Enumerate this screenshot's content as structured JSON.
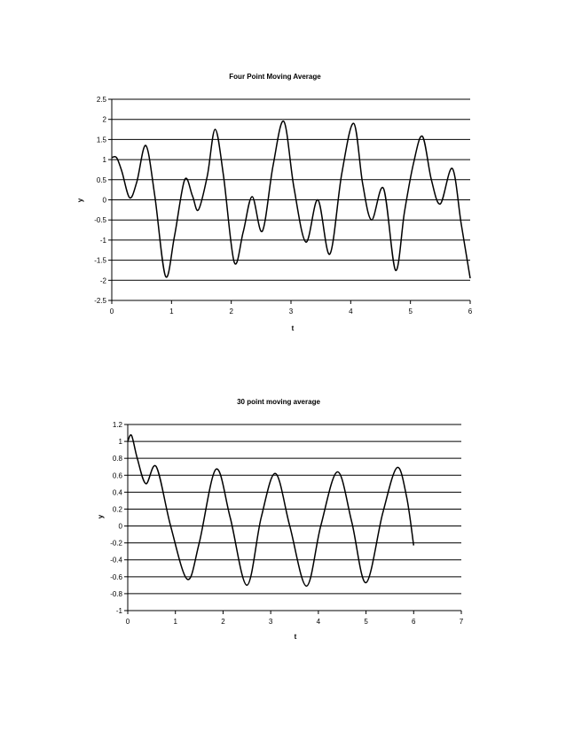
{
  "chart_data": [
    {
      "type": "line",
      "title": "Four Point Moving Average",
      "xlabel": "t",
      "ylabel": "y",
      "xlim": [
        0,
        6
      ],
      "ylim": [
        -2.5,
        2.5
      ],
      "x_ticks": [
        0,
        1,
        2,
        3,
        4,
        5,
        6
      ],
      "y_ticks": [
        2.5,
        2,
        1.5,
        1,
        0.5,
        0,
        -0.5,
        -1,
        -1.5,
        -2,
        -2.5
      ],
      "grid": "horizontal",
      "x": [
        0,
        0.08,
        0.17,
        0.3,
        0.42,
        0.57,
        0.72,
        0.9,
        1.05,
        1.22,
        1.35,
        1.45,
        1.6,
        1.73,
        1.87,
        2.05,
        2.2,
        2.35,
        2.52,
        2.7,
        2.88,
        3.05,
        3.25,
        3.45,
        3.65,
        3.85,
        4.05,
        4.2,
        4.35,
        4.55,
        4.75,
        4.9,
        5.05,
        5.2,
        5.35,
        5.5,
        5.7,
        5.85,
        6.0
      ],
      "y": [
        1.05,
        1.05,
        0.7,
        0.05,
        0.45,
        1.35,
        0.1,
        -1.9,
        -0.9,
        0.5,
        0.1,
        -0.25,
        0.6,
        1.75,
        0.6,
        -1.55,
        -0.8,
        0.08,
        -0.78,
        0.85,
        1.95,
        0.3,
        -1.05,
        0.0,
        -1.35,
        0.65,
        1.9,
        0.4,
        -0.5,
        0.28,
        -1.75,
        -0.3,
        0.9,
        1.58,
        0.5,
        -0.1,
        0.78,
        -0.6,
        -1.95
      ]
    },
    {
      "type": "line",
      "title": "30 point moving average",
      "xlabel": "t",
      "ylabel": "y",
      "xlim": [
        0,
        7
      ],
      "ylim": [
        -1,
        1.2
      ],
      "x_ticks": [
        0,
        1,
        2,
        3,
        4,
        5,
        6,
        7
      ],
      "y_ticks": [
        1.2,
        1,
        0.8,
        0.6,
        0.4,
        0.2,
        0,
        -0.2,
        -0.4,
        -0.6,
        -0.8,
        -1
      ],
      "grid": "horizontal",
      "x": [
        0,
        0.08,
        0.2,
        0.38,
        0.6,
        0.9,
        1.25,
        1.5,
        1.85,
        2.15,
        2.5,
        2.8,
        3.1,
        3.4,
        3.75,
        4.05,
        4.4,
        4.7,
        5.0,
        5.35,
        5.65,
        5.85,
        6.0
      ],
      "y": [
        1.0,
        1.07,
        0.8,
        0.5,
        0.7,
        0.0,
        -0.63,
        -0.2,
        0.67,
        0.1,
        -0.7,
        0.1,
        0.62,
        0.0,
        -0.71,
        0.0,
        0.64,
        0.05,
        -0.67,
        0.15,
        0.69,
        0.35,
        -0.23
      ]
    }
  ]
}
